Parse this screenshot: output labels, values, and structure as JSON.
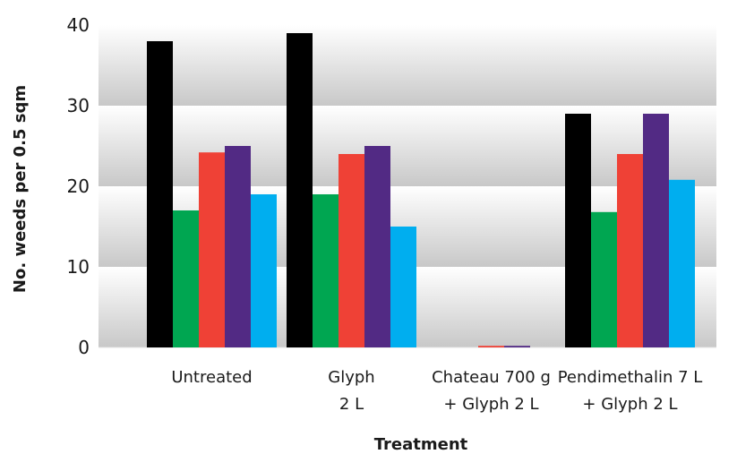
{
  "chart_data": {
    "type": "bar",
    "title": "",
    "xlabel": "Treatment",
    "ylabel": "No. weeds per 0.5 sqm",
    "ylim": [
      0,
      40
    ],
    "yticks": [
      "0",
      "10",
      "20",
      "30",
      "40"
    ],
    "categories": [
      [
        "Untreated"
      ],
      [
        "Glyph",
        "2 L"
      ],
      [
        "Chateau 700 g",
        "+ Glyph 2 L"
      ],
      [
        "Pendimethalin 7 L",
        "+ Glyph 2 L"
      ]
    ],
    "series": [
      {
        "color": "#000000",
        "values": [
          38,
          39,
          0,
          29
        ]
      },
      {
        "color": "#00a651",
        "values": [
          17,
          19,
          0,
          16.8
        ]
      },
      {
        "color": "#ef4136",
        "values": [
          24.2,
          24,
          0.2,
          24
        ]
      },
      {
        "color": "#522a84",
        "values": [
          25,
          25,
          0.2,
          29
        ]
      },
      {
        "color": "#00aeef",
        "values": [
          19,
          15,
          0,
          20.8
        ]
      }
    ],
    "grid": "alternating horizontal bands",
    "legend": "none"
  }
}
